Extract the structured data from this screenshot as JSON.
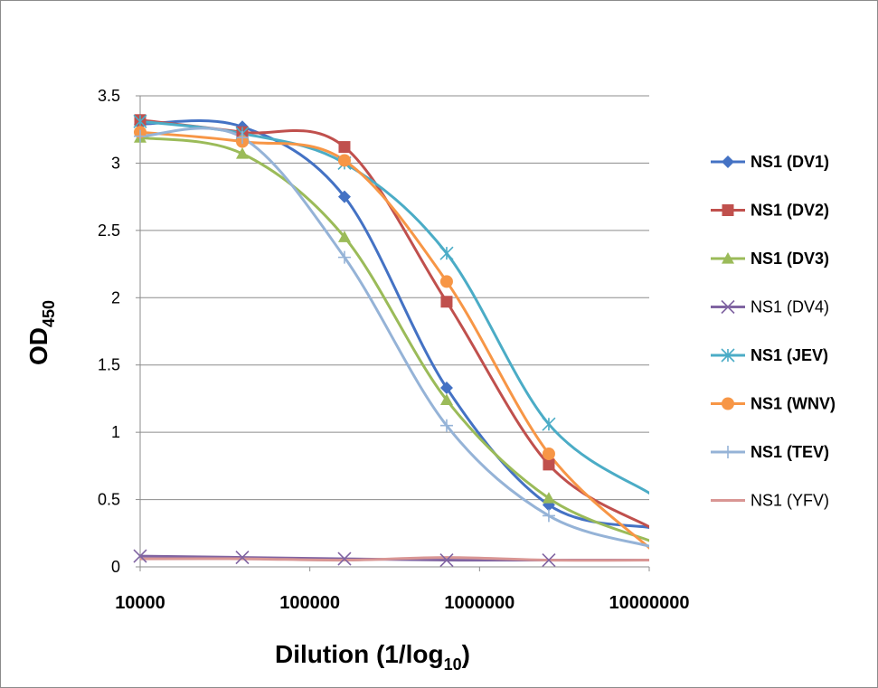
{
  "chart_data": {
    "type": "line",
    "xscale": "log",
    "xlim": [
      10000,
      10000000
    ],
    "ylim": [
      0,
      3.5
    ],
    "ytick_step": 0.5,
    "x_tick_labels": [
      "10000",
      "100000",
      "1000000",
      "10000000"
    ],
    "y_tick_labels": [
      "0",
      "0.5",
      "1",
      "1.5",
      "2",
      "2.5",
      "3",
      "3.5"
    ],
    "xlabel": {
      "main": "Dilution (1/log",
      "sub": "10",
      "end": ")"
    },
    "ylabel": {
      "main": "OD",
      "sub": "450"
    },
    "grid": "horizontal",
    "legend_position": "right",
    "x": [
      10000,
      40000,
      160000,
      640000,
      2560000,
      10240000
    ],
    "series": [
      {
        "name": "NS1 (DV1)",
        "color": "#4472C4",
        "marker": "diamond",
        "bold": true,
        "values": [
          3.29,
          3.27,
          2.75,
          1.33,
          0.46,
          0.29
        ]
      },
      {
        "name": "NS1 (DV2)",
        "color": "#C0504D",
        "marker": "square",
        "bold": true,
        "values": [
          3.32,
          3.23,
          3.12,
          1.97,
          0.76,
          0.29
        ]
      },
      {
        "name": "NS1 (DV3)",
        "color": "#9BBB59",
        "marker": "triangle",
        "bold": true,
        "values": [
          3.19,
          3.07,
          2.45,
          1.24,
          0.51,
          0.19
        ]
      },
      {
        "name": "NS1 (DV4)",
        "color": "#8064A2",
        "marker": "x",
        "bold": false,
        "values": [
          0.08,
          0.07,
          0.06,
          0.05,
          0.05,
          0.05
        ]
      },
      {
        "name": "NS1 (JEV)",
        "color": "#4BACC6",
        "marker": "star",
        "bold": true,
        "values": [
          3.31,
          3.22,
          3.0,
          2.33,
          1.06,
          0.54
        ]
      },
      {
        "name": "NS1 (WNV)",
        "color": "#F79646",
        "marker": "circle",
        "bold": true,
        "values": [
          3.23,
          3.16,
          3.02,
          2.12,
          0.84,
          0.13
        ]
      },
      {
        "name": "NS1 (TEV)",
        "color": "#95B3D7",
        "marker": "plus",
        "bold": true,
        "values": [
          3.2,
          3.19,
          2.3,
          1.05,
          0.38,
          0.15
        ]
      },
      {
        "name": "NS1 (YFV)",
        "color": "#D99694",
        "marker": "none",
        "bold": false,
        "values": [
          0.06,
          0.06,
          0.05,
          0.07,
          0.05,
          0.05
        ]
      }
    ]
  }
}
